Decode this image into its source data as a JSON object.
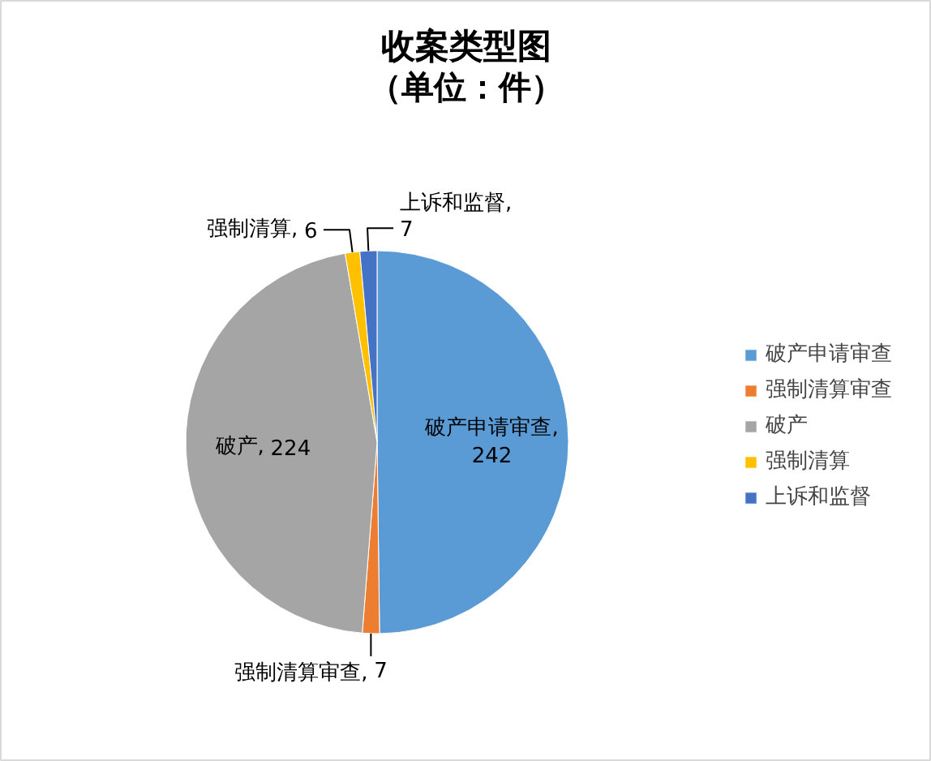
{
  "chart_data": {
    "type": "pie",
    "title": "收案类型图",
    "subtitle": "（单位：件）",
    "categories": [
      "破产申请审查",
      "强制清算审查",
      "破产",
      "强制清算",
      "上诉和监督"
    ],
    "values": [
      242,
      7,
      224,
      6,
      7
    ],
    "value_labels": [
      "破产申请审查, 242",
      "强制清算审查, 7",
      "破产, 224",
      "强制清算, 6",
      "上诉和监督, 7"
    ],
    "colors": [
      "#5b9bd5",
      "#ed7d31",
      "#a5a5a5",
      "#ffc000",
      "#4472c4"
    ],
    "legend": "right"
  }
}
